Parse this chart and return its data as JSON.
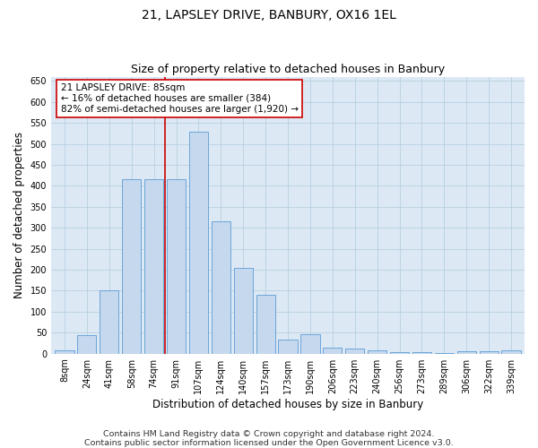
{
  "title": "21, LAPSLEY DRIVE, BANBURY, OX16 1EL",
  "subtitle": "Size of property relative to detached houses in Banbury",
  "xlabel": "Distribution of detached houses by size in Banbury",
  "ylabel": "Number of detached properties",
  "categories": [
    "8sqm",
    "24sqm",
    "41sqm",
    "58sqm",
    "74sqm",
    "91sqm",
    "107sqm",
    "124sqm",
    "140sqm",
    "157sqm",
    "173sqm",
    "190sqm",
    "206sqm",
    "223sqm",
    "240sqm",
    "256sqm",
    "273sqm",
    "289sqm",
    "306sqm",
    "322sqm",
    "339sqm"
  ],
  "values": [
    7,
    45,
    150,
    415,
    415,
    415,
    530,
    315,
    205,
    140,
    33,
    47,
    15,
    13,
    8,
    4,
    4,
    2,
    5,
    5,
    7
  ],
  "bar_color": "#c5d8ed",
  "bar_edge_color": "#5b9bd5",
  "vline_x_index": 5,
  "vline_color": "#cc0000",
  "annotation_line1": "21 LAPSLEY DRIVE: 85sqm",
  "annotation_line2": "← 16% of detached houses are smaller (384)",
  "annotation_line3": "82% of semi-detached houses are larger (1,920) →",
  "annotation_box_color": "#ffffff",
  "annotation_box_edge_color": "#cc0000",
  "ylim": [
    0,
    660
  ],
  "yticks": [
    0,
    50,
    100,
    150,
    200,
    250,
    300,
    350,
    400,
    450,
    500,
    550,
    600,
    650
  ],
  "footer_line1": "Contains HM Land Registry data © Crown copyright and database right 2024.",
  "footer_line2": "Contains public sector information licensed under the Open Government Licence v3.0.",
  "bg_color": "#ffffff",
  "plot_bg_color": "#dce9f5",
  "grid_color": "#b8cfe0",
  "title_fontsize": 10,
  "subtitle_fontsize": 9,
  "axis_label_fontsize": 8.5,
  "tick_fontsize": 7,
  "annotation_fontsize": 7.5,
  "footer_fontsize": 6.8
}
